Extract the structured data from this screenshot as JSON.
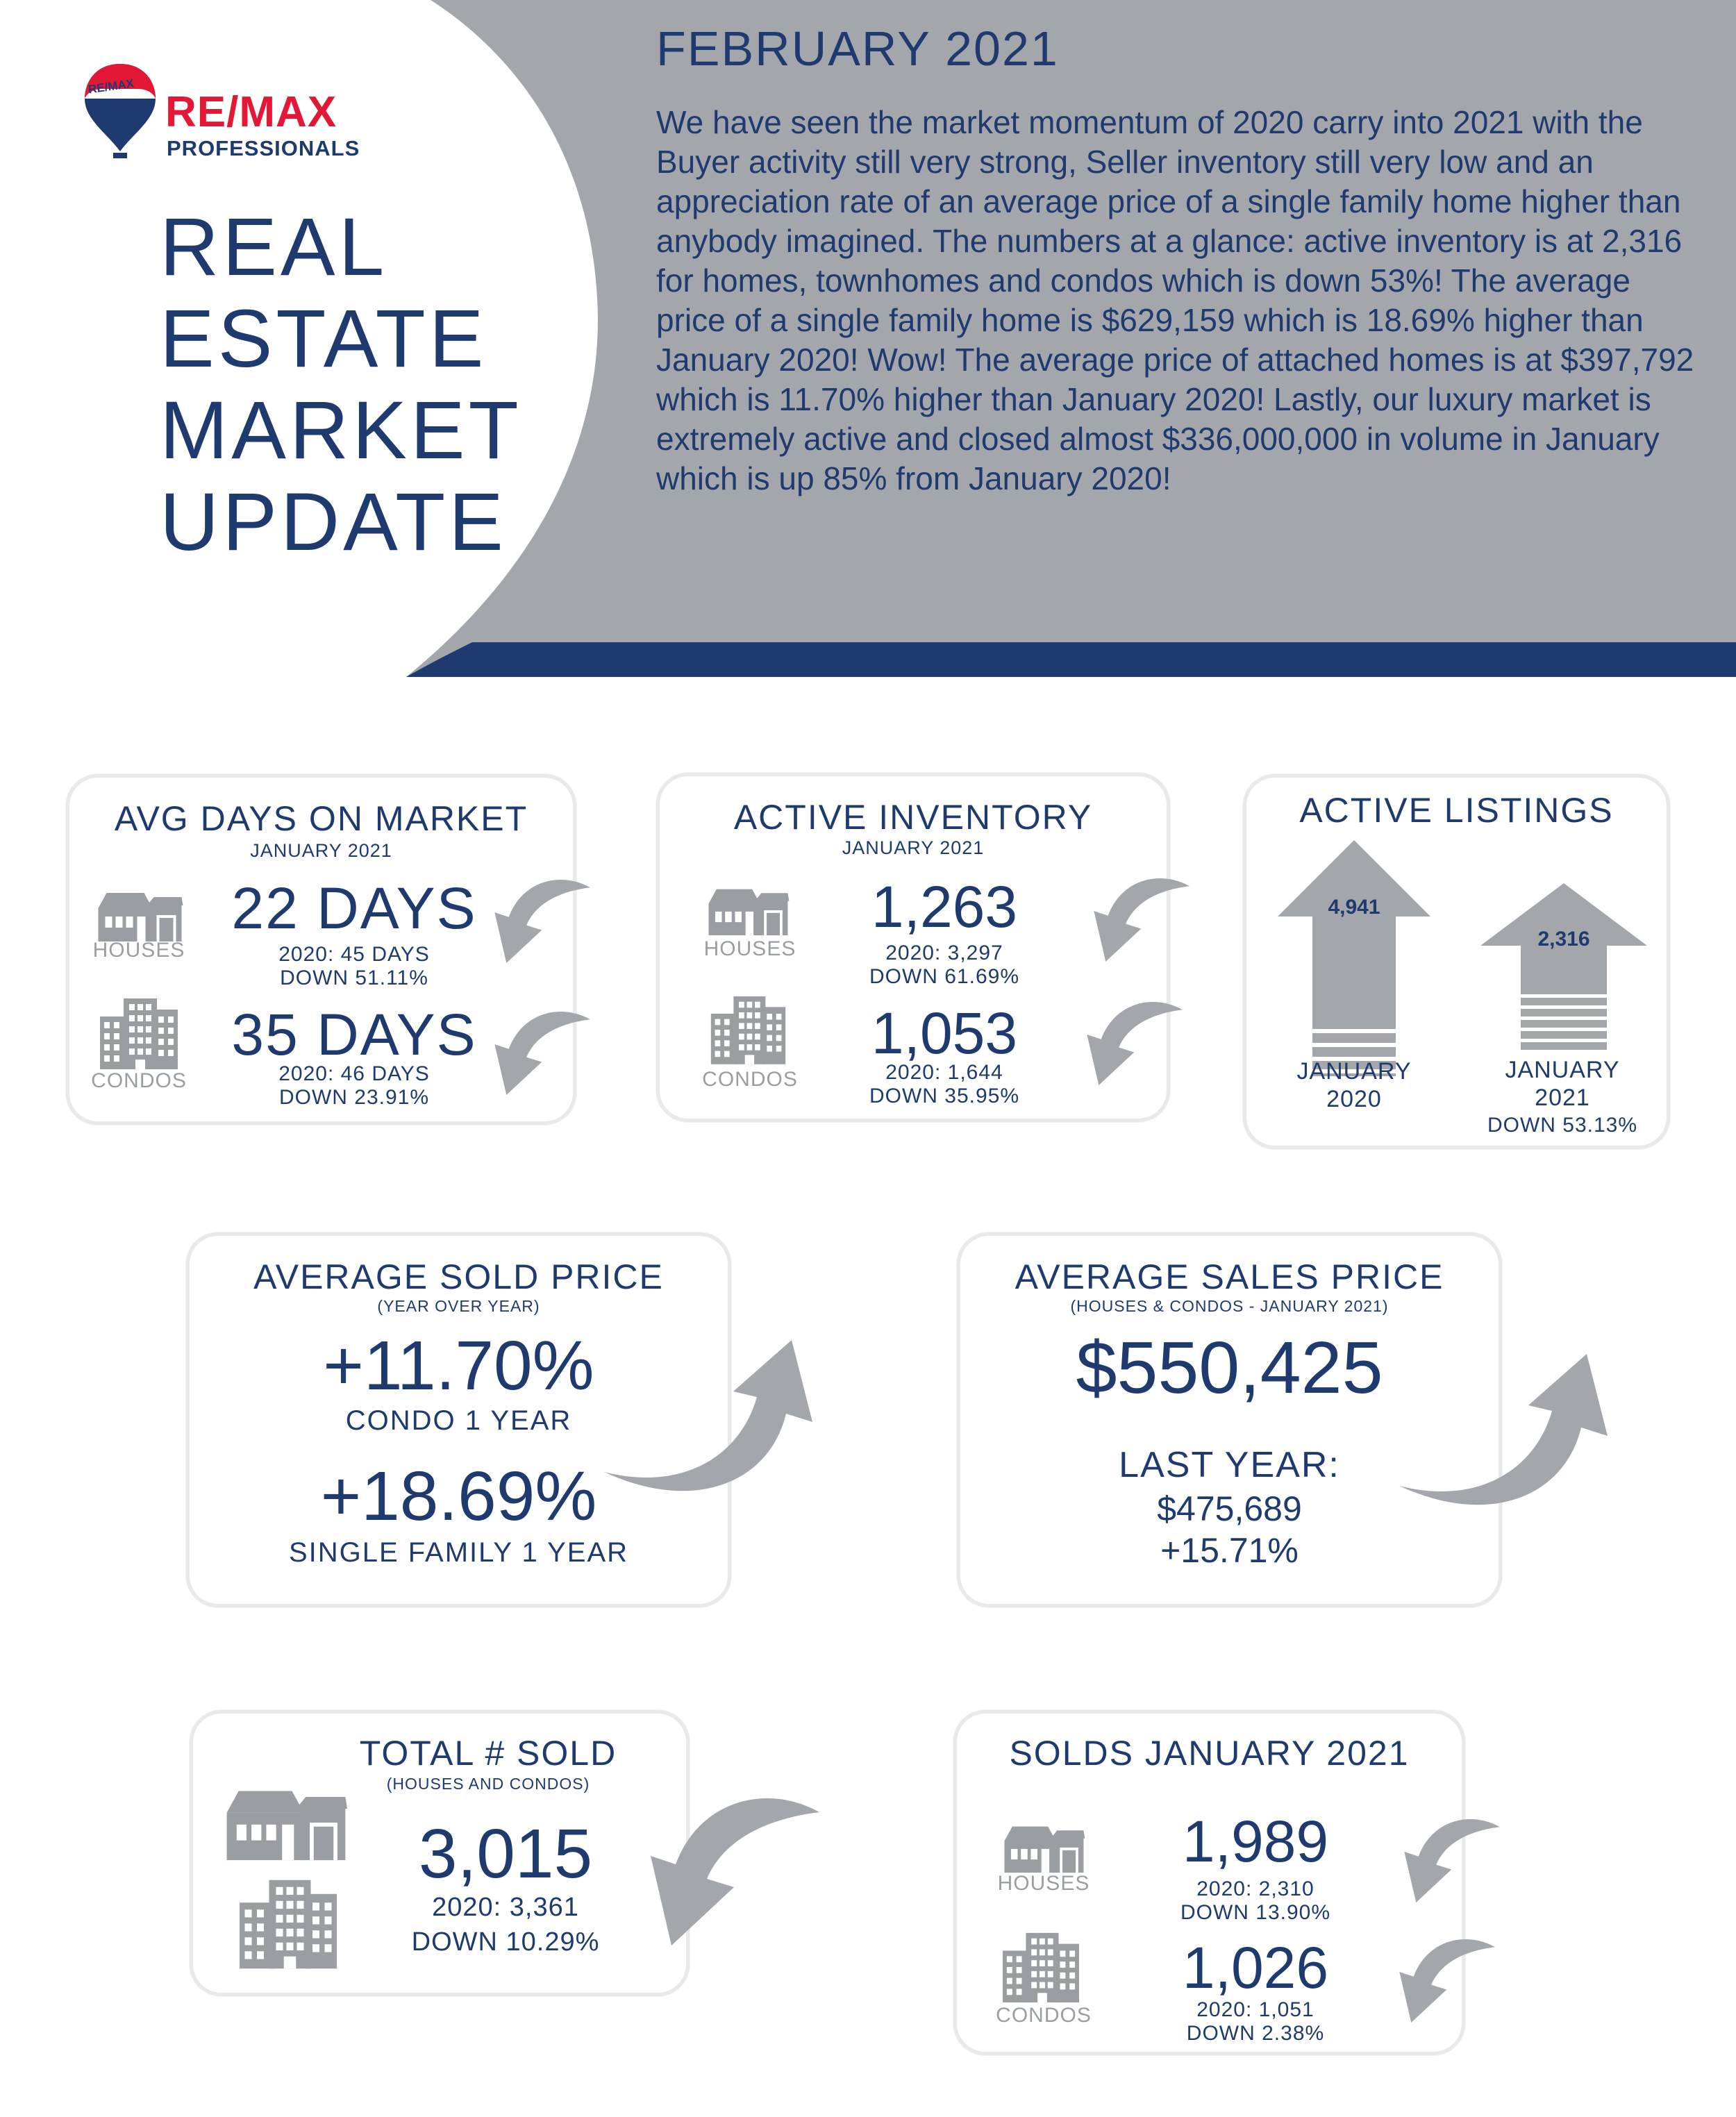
{
  "header": {
    "logo_top": "RE/MAX",
    "logo_brand": "RE/MAX",
    "logo_sub": "PROFESSIONALS",
    "title_lines": [
      "REAL",
      "ESTATE",
      "MARKET",
      "UPDATE"
    ],
    "date": "FEBRUARY 2021",
    "intro": "We have seen the market momentum of 2020 carry into 2021 with the Buyer activity still very strong, Seller inventory still very low and an appreciation rate of an average price of a single family home higher than anybody imagined. The numbers at a glance: active inventory is at 2,316 for homes, townhomes and condos which is down 53%! The average price of a single family home is $629,159 which is 18.69% higher than January 2020!  Wow! The average price of attached homes is at $397,792 which is 11.70% higher than January 2020! Lastly, our luxury market is extremely active and closed almost $336,000,000 in volume in January which is up 85% from January 2020!"
  },
  "colors": {
    "navy": "#1f3a6e",
    "gray_panel": "#a3a7ab",
    "icon_gray": "#9a9ea3",
    "card_border": "#e8e9eb"
  },
  "avg_days": {
    "title": "AVG DAYS ON MARKET",
    "subtitle": "JANUARY 2021",
    "houses_label": "HOUSES",
    "houses_value": "22 DAYS",
    "houses_prev": "2020: 45 DAYS",
    "houses_change": "DOWN 51.11%",
    "condos_label": "CONDOS",
    "condos_value": "35 DAYS",
    "condos_prev": "2020: 46 DAYS",
    "condos_change": "DOWN 23.91%"
  },
  "active_inventory": {
    "title": "ACTIVE INVENTORY",
    "subtitle": "JANUARY 2021",
    "houses_label": "HOUSES",
    "houses_value": "1,263",
    "houses_prev": "2020: 3,297",
    "houses_change": "DOWN 61.69%",
    "condos_label": "CONDOS",
    "condos_value": "1,053",
    "condos_prev": "2020: 1,644",
    "condos_change": "DOWN 35.95%"
  },
  "active_listings": {
    "title": "ACTIVE LISTINGS",
    "left_value": "4,941",
    "left_label_1": "JANUARY",
    "left_label_2": "2020",
    "right_value": "2,316",
    "right_label_1": "JANUARY",
    "right_label_2": "2021",
    "right_change": "DOWN 53.13%"
  },
  "avg_sold": {
    "title": "AVERAGE SOLD PRICE",
    "subtitle": "(YEAR OVER YEAR)",
    "condo_value": "+11.70%",
    "condo_label": "CONDO 1 YEAR",
    "sf_value": "+18.69%",
    "sf_label": "SINGLE FAMILY 1 YEAR"
  },
  "avg_sales": {
    "title": "AVERAGE SALES PRICE",
    "subtitle": "(HOUSES & CONDOS - JANUARY 2021)",
    "value": "$550,425",
    "last_year_label": "LAST YEAR:",
    "last_year_value": "$475,689",
    "change": "+15.71%"
  },
  "total_sold": {
    "title": "TOTAL # SOLD",
    "subtitle": "(HOUSES AND CONDOS)",
    "value": "3,015",
    "prev": "2020: 3,361",
    "change": "DOWN 10.29%"
  },
  "solds": {
    "title": "SOLDS JANUARY 2021",
    "houses_label": "HOUSES",
    "houses_value": "1,989",
    "houses_prev": "2020: 2,310",
    "houses_change": "DOWN 13.90%",
    "condos_label": "CONDOS",
    "condos_value": "1,026",
    "condos_prev": "2020: 1,051",
    "condos_change": "DOWN 2.38%"
  }
}
